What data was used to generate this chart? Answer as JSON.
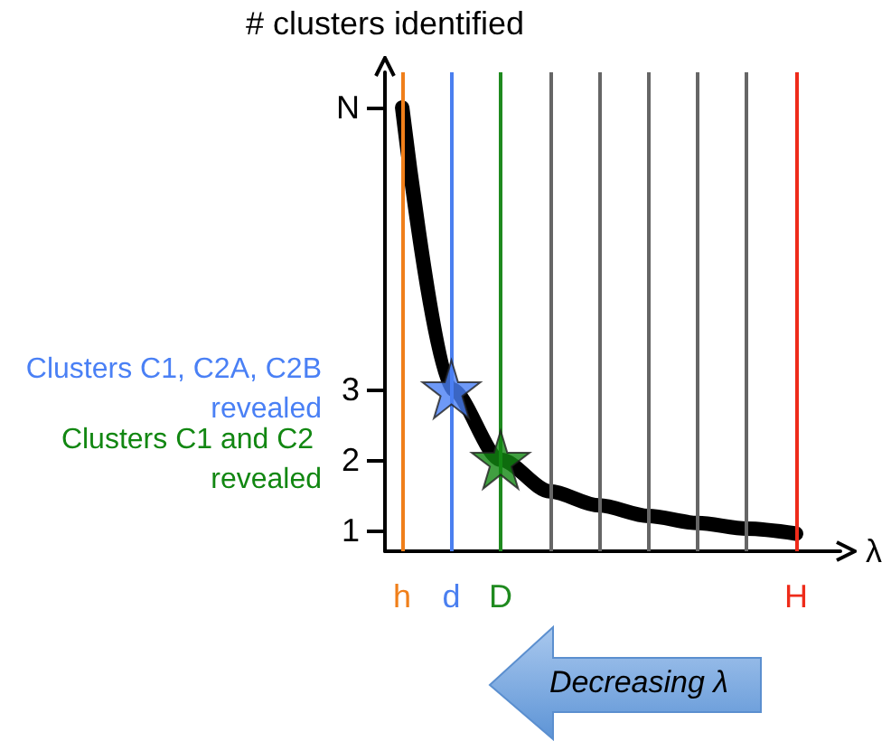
{
  "chart_data": {
    "type": "line",
    "ylabel": "# clusters identified",
    "xlabel": "λ",
    "categories": [
      "h",
      "d",
      "D",
      null,
      null,
      null,
      null,
      null,
      "H"
    ],
    "ylim": [
      0.7,
      7.5
    ],
    "yticks": [
      1,
      2,
      3,
      {
        "value": 7,
        "label": "N"
      }
    ],
    "grid": "x",
    "series": [
      {
        "color": "#000000",
        "values": [
          7,
          3,
          2,
          1.55,
          1.35,
          1.2,
          1.1,
          1.02,
          0.95
        ]
      },
      {
        "type": "scatter",
        "marker": "star",
        "x": [
          "d",
          "D"
        ],
        "values": [
          3,
          2
        ],
        "colors": [
          "#4a80f5",
          "#128712"
        ]
      }
    ],
    "ref_lines": [
      {
        "axis": "x",
        "value": "h",
        "color": "#f07f1a"
      },
      {
        "axis": "x",
        "value": "d",
        "color": "#4a7ff0"
      },
      {
        "axis": "x",
        "value": "D",
        "color": "#1f8a1f"
      },
      {
        "axis": "x",
        "value": "H",
        "color": "#ee2b1a"
      }
    ],
    "annotations": [
      "Clusters C1, C2A, C2B revealed",
      "Clusters C1 and C2 revealed",
      "Decreasing λ"
    ]
  }
}
